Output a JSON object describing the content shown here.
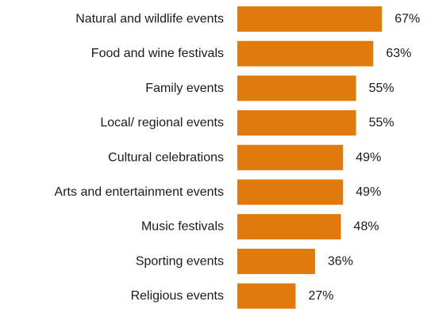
{
  "chart_data": {
    "type": "bar",
    "orientation": "horizontal",
    "categories": [
      "Natural and wildlife events",
      "Food and wine festivals",
      "Family events",
      "Local/ regional events",
      "Cultural celebrations",
      "Arts and entertainment events",
      "Music festivals",
      "Sporting events",
      "Religious events"
    ],
    "values": [
      67,
      63,
      55,
      55,
      49,
      49,
      48,
      36,
      27
    ],
    "value_labels": [
      "67%",
      "63%",
      "55%",
      "55%",
      "49%",
      "49%",
      "48%",
      "36%",
      "27%"
    ],
    "value_unit": "%",
    "title": "",
    "xlabel": "",
    "ylabel": "",
    "grid": false,
    "legend": "none",
    "bar_color": "#E07A0C"
  }
}
